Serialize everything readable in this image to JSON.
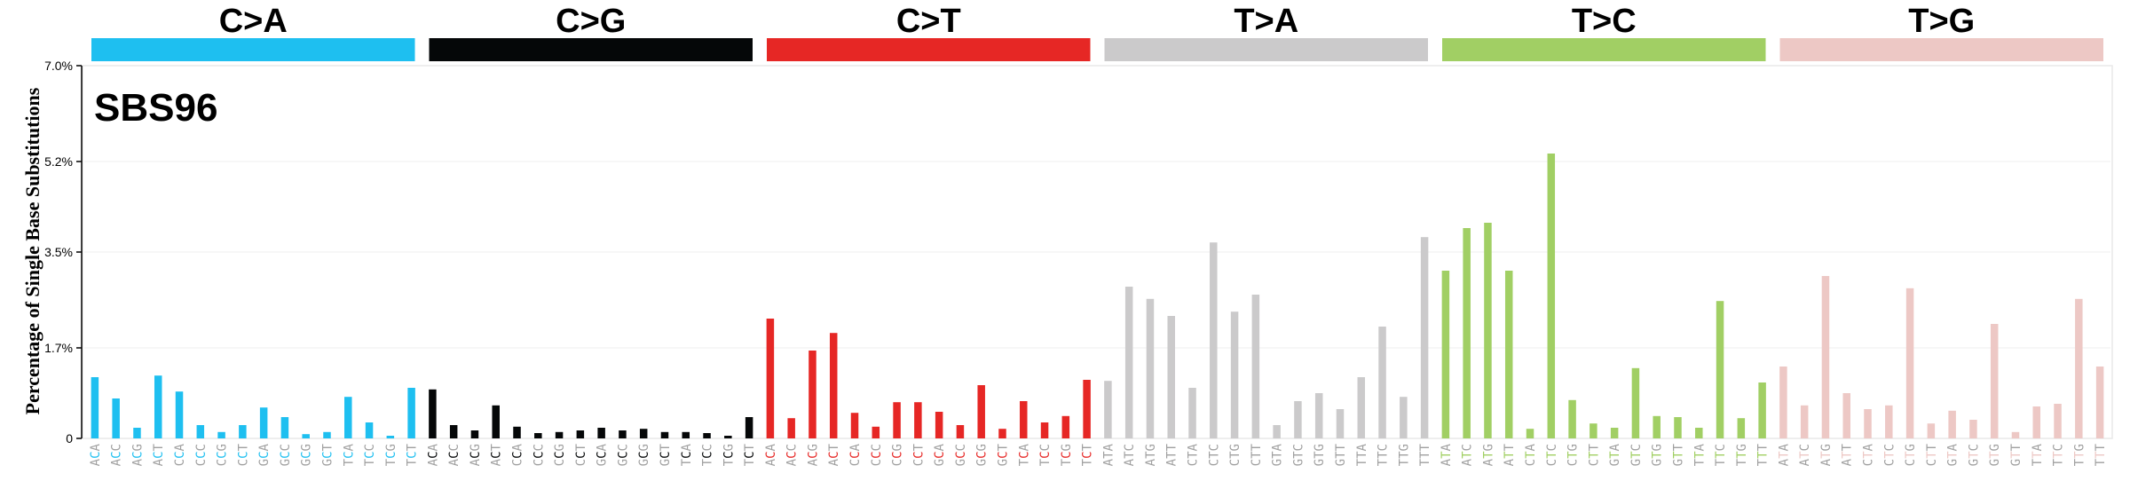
{
  "chart_data": {
    "type": "bar",
    "title": "SBS96",
    "ylabel": "Percentage of Single Base Substitutions",
    "xlabel": "",
    "ylim": [
      0,
      7.0
    ],
    "yticks": [
      0,
      1.7,
      3.5,
      5.2,
      7.0
    ],
    "ytick_labels": [
      "0",
      "1.7%",
      "3.5%",
      "5.2%",
      "7.0%"
    ],
    "grid": true,
    "mutation_types": [
      {
        "label": "C>A",
        "color": "#1EBFF0",
        "ref": "C",
        "alt": "A"
      },
      {
        "label": "C>G",
        "color": "#050708",
        "ref": "C",
        "alt": "G"
      },
      {
        "label": "C>T",
        "color": "#E62725",
        "ref": "C",
        "alt": "T"
      },
      {
        "label": "T>A",
        "color": "#CBCACB",
        "ref": "T",
        "alt": "A"
      },
      {
        "label": "T>C",
        "color": "#A1CF64",
        "ref": "T",
        "alt": "C"
      },
      {
        "label": "T>G",
        "color": "#EDC8C5",
        "ref": "T",
        "alt": "G"
      }
    ],
    "contexts": [
      "ACA",
      "ACC",
      "ACG",
      "ACT",
      "CCA",
      "CCC",
      "CCG",
      "CCT",
      "GCA",
      "GCC",
      "GCG",
      "GCT",
      "TCA",
      "TCC",
      "TCG",
      "TCT"
    ],
    "context_label_color": "#A0A0A0",
    "values": [
      1.15,
      0.75,
      0.2,
      1.18,
      0.88,
      0.25,
      0.12,
      0.25,
      0.58,
      0.4,
      0.08,
      0.12,
      0.78,
      0.3,
      0.05,
      0.95,
      0.92,
      0.25,
      0.15,
      0.62,
      0.22,
      0.1,
      0.12,
      0.15,
      0.2,
      0.15,
      0.18,
      0.12,
      0.12,
      0.1,
      0.05,
      0.4,
      2.25,
      0.38,
      1.65,
      1.98,
      0.48,
      0.22,
      0.68,
      0.68,
      0.5,
      0.25,
      1.0,
      0.18,
      0.7,
      0.3,
      0.42,
      1.1,
      1.08,
      2.85,
      2.62,
      2.3,
      0.95,
      3.68,
      2.38,
      2.7,
      0.25,
      0.7,
      0.85,
      0.55,
      1.15,
      2.1,
      0.78,
      3.78,
      3.15,
      3.95,
      4.05,
      3.15,
      0.18,
      5.35,
      0.72,
      0.28,
      0.2,
      1.32,
      0.42,
      0.4,
      0.2,
      2.58,
      0.38,
      1.05,
      1.35,
      0.62,
      3.05,
      0.85,
      0.55,
      0.62,
      2.82,
      0.28,
      0.52,
      0.35,
      2.15,
      0.12,
      0.6,
      0.65,
      2.62,
      1.35
    ]
  }
}
